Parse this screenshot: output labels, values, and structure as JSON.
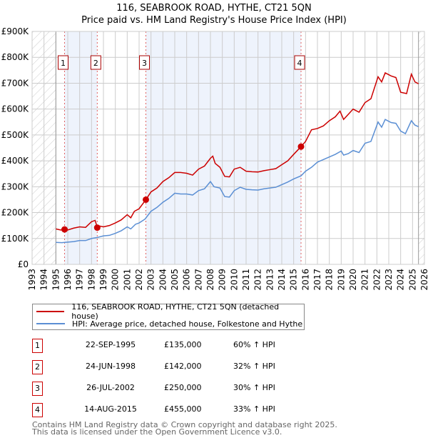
{
  "chart_data": {
    "type": "line",
    "title": "116, SEABROOK ROAD, HYTHE, CT21 5QN",
    "subtitle": "Price paid vs. HM Land Registry's House Price Index (HPI)",
    "xlim": [
      1993,
      2026
    ],
    "ylim": [
      0,
      900000
    ],
    "x_ticks": [
      "1993",
      "1994",
      "1995",
      "1996",
      "1997",
      "1998",
      "1999",
      "2000",
      "2001",
      "2002",
      "2003",
      "2004",
      "2005",
      "2006",
      "2007",
      "2008",
      "2009",
      "2010",
      "2011",
      "2012",
      "2013",
      "2014",
      "2015",
      "2016",
      "2017",
      "2018",
      "2019",
      "2020",
      "2021",
      "2022",
      "2023",
      "2024",
      "2025",
      "2026"
    ],
    "y_ticks": [
      {
        "v": 0,
        "label": "£0"
      },
      {
        "v": 100000,
        "label": "£100K"
      },
      {
        "v": 200000,
        "label": "£200K"
      },
      {
        "v": 300000,
        "label": "£300K"
      },
      {
        "v": 400000,
        "label": "£400K"
      },
      {
        "v": 500000,
        "label": "£500K"
      },
      {
        "v": 600000,
        "label": "£600K"
      },
      {
        "v": 700000,
        "label": "£700K"
      },
      {
        "v": 800000,
        "label": "£800K"
      },
      {
        "v": 900000,
        "label": "£900K"
      }
    ],
    "grid": true,
    "data_range": [
      1995,
      2025.5
    ],
    "series": [
      {
        "name": "116, SEABROOK ROAD, HYTHE, CT21 5QN (detached house)",
        "color": "#cc0000",
        "points": [
          [
            1995,
            137
          ],
          [
            1995.4,
            133
          ],
          [
            1995.73,
            135
          ],
          [
            1996,
            133
          ],
          [
            1996.5,
            140
          ],
          [
            1997,
            145
          ],
          [
            1997.5,
            143
          ],
          [
            1998,
            165
          ],
          [
            1998.3,
            170
          ],
          [
            1998.4,
            155
          ],
          [
            1998.48,
            142
          ],
          [
            1998.7,
            148
          ],
          [
            1999,
            145
          ],
          [
            1999.5,
            150
          ],
          [
            2000,
            160
          ],
          [
            2000.5,
            172
          ],
          [
            2001,
            192
          ],
          [
            2001.3,
            180
          ],
          [
            2001.6,
            205
          ],
          [
            2002,
            215
          ],
          [
            2002.57,
            250
          ],
          [
            2003,
            280
          ],
          [
            2003.5,
            295
          ],
          [
            2004,
            320
          ],
          [
            2004.5,
            335
          ],
          [
            2005,
            355
          ],
          [
            2005.5,
            355
          ],
          [
            2006,
            352
          ],
          [
            2006.5,
            345
          ],
          [
            2007,
            368
          ],
          [
            2007.5,
            380
          ],
          [
            2008,
            410
          ],
          [
            2008.2,
            418
          ],
          [
            2008.4,
            390
          ],
          [
            2008.8,
            375
          ],
          [
            2009.2,
            340
          ],
          [
            2009.6,
            338
          ],
          [
            2010,
            368
          ],
          [
            2010.5,
            375
          ],
          [
            2011,
            360
          ],
          [
            2011.5,
            358
          ],
          [
            2012,
            357
          ],
          [
            2012.5,
            362
          ],
          [
            2013,
            366
          ],
          [
            2013.5,
            370
          ],
          [
            2014,
            385
          ],
          [
            2014.5,
            400
          ],
          [
            2015,
            425
          ],
          [
            2015.62,
            455
          ],
          [
            2016,
            475
          ],
          [
            2016.5,
            520
          ],
          [
            2017,
            525
          ],
          [
            2017.5,
            535
          ],
          [
            2018,
            555
          ],
          [
            2018.5,
            570
          ],
          [
            2018.9,
            592
          ],
          [
            2019.2,
            560
          ],
          [
            2019.5,
            575
          ],
          [
            2020,
            600
          ],
          [
            2020.5,
            588
          ],
          [
            2021,
            625
          ],
          [
            2021.5,
            640
          ],
          [
            2022.1,
            725
          ],
          [
            2022.4,
            705
          ],
          [
            2022.7,
            740
          ],
          [
            2023.2,
            728
          ],
          [
            2023.6,
            722
          ],
          [
            2024,
            665
          ],
          [
            2024.5,
            660
          ],
          [
            2024.9,
            735
          ],
          [
            2025.2,
            705
          ],
          [
            2025.5,
            698
          ]
        ]
      },
      {
        "name": "HPI: Average price, detached house, Folkestone and Hythe",
        "color": "#5b8fd4",
        "points": [
          [
            1995,
            85
          ],
          [
            1995.5,
            84
          ],
          [
            1996,
            86
          ],
          [
            1996.5,
            88
          ],
          [
            1997,
            92
          ],
          [
            1997.5,
            92
          ],
          [
            1998,
            100
          ],
          [
            1998.5,
            104
          ],
          [
            1999,
            110
          ],
          [
            1999.5,
            112
          ],
          [
            2000,
            120
          ],
          [
            2000.5,
            130
          ],
          [
            2001,
            145
          ],
          [
            2001.3,
            137
          ],
          [
            2001.7,
            155
          ],
          [
            2002,
            160
          ],
          [
            2002.5,
            175
          ],
          [
            2003,
            205
          ],
          [
            2003.5,
            220
          ],
          [
            2004,
            240
          ],
          [
            2004.5,
            255
          ],
          [
            2005,
            275
          ],
          [
            2005.5,
            272
          ],
          [
            2006,
            272
          ],
          [
            2006.5,
            268
          ],
          [
            2007,
            285
          ],
          [
            2007.5,
            292
          ],
          [
            2008,
            320
          ],
          [
            2008.3,
            300
          ],
          [
            2008.8,
            295
          ],
          [
            2009.2,
            262
          ],
          [
            2009.6,
            260
          ],
          [
            2010,
            285
          ],
          [
            2010.5,
            298
          ],
          [
            2011,
            290
          ],
          [
            2011.5,
            288
          ],
          [
            2012,
            287
          ],
          [
            2012.5,
            292
          ],
          [
            2013,
            295
          ],
          [
            2013.5,
            298
          ],
          [
            2014,
            308
          ],
          [
            2014.5,
            318
          ],
          [
            2015,
            330
          ],
          [
            2015.62,
            342
          ],
          [
            2016,
            360
          ],
          [
            2016.5,
            375
          ],
          [
            2017,
            395
          ],
          [
            2017.5,
            405
          ],
          [
            2018,
            415
          ],
          [
            2018.5,
            425
          ],
          [
            2019,
            438
          ],
          [
            2019.2,
            422
          ],
          [
            2019.6,
            428
          ],
          [
            2020,
            440
          ],
          [
            2020.5,
            432
          ],
          [
            2021,
            468
          ],
          [
            2021.5,
            475
          ],
          [
            2022.1,
            550
          ],
          [
            2022.4,
            530
          ],
          [
            2022.7,
            560
          ],
          [
            2023.2,
            548
          ],
          [
            2023.6,
            545
          ],
          [
            2024,
            515
          ],
          [
            2024.4,
            505
          ],
          [
            2024.9,
            555
          ],
          [
            2025.2,
            538
          ],
          [
            2025.5,
            532
          ]
        ]
      }
    ],
    "value_unit": "£ thousands",
    "sales": [
      {
        "n": "1",
        "x": 1995.73,
        "price": 135000,
        "date": "22-SEP-1995",
        "price_label": "£135,000",
        "hpi": "60% ↑ HPI"
      },
      {
        "n": "2",
        "x": 1998.48,
        "price": 142000,
        "date": "24-JUN-1998",
        "price_label": "£142,000",
        "hpi": "32% ↑ HPI"
      },
      {
        "n": "3",
        "x": 2002.57,
        "price": 250000,
        "date": "26-JUL-2002",
        "price_label": "£250,000",
        "hpi": "30% ↑ HPI"
      },
      {
        "n": "4",
        "x": 2015.62,
        "price": 455000,
        "date": "14-AUG-2015",
        "price_label": "£455,000",
        "hpi": "33% ↑ HPI"
      }
    ]
  },
  "title": "116, SEABROOK ROAD, HYTHE, CT21 5QN",
  "subtitle": "Price paid vs. HM Land Registry's House Price Index (HPI)",
  "legend": {
    "red": "116, SEABROOK ROAD, HYTHE, CT21 5QN (detached house)",
    "blue": "HPI: Average price, detached house, Folkestone and Hythe"
  },
  "footer": {
    "line1": "Contains HM Land Registry data © Crown copyright and database right 2025.",
    "line2": "This data is licensed under the Open Government Licence v3.0."
  }
}
